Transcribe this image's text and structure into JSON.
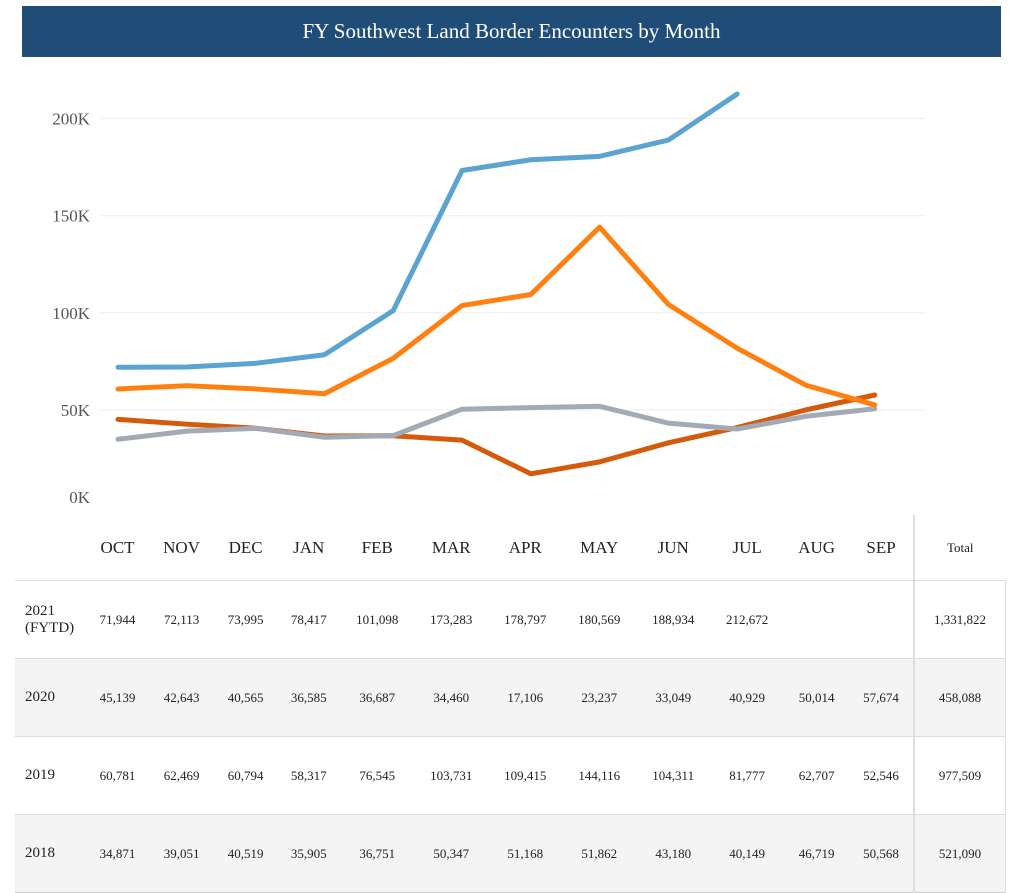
{
  "chart_data": {
    "type": "line",
    "title": "FY Southwest Land Border Encounters by Month",
    "categories": [
      "OCT",
      "NOV",
      "DEC",
      "JAN",
      "FEB",
      "MAR",
      "APR",
      "MAY",
      "JUN",
      "JUL",
      "AUG",
      "SEP"
    ],
    "yticks": [
      {
        "v": 0,
        "label": "0K"
      },
      {
        "v": 50000,
        "label": "50K"
      },
      {
        "v": 100000,
        "label": "100K"
      },
      {
        "v": 150000,
        "label": "150K"
      },
      {
        "v": 200000,
        "label": "200K"
      }
    ],
    "ylim": [
      0,
      220000
    ],
    "grid": true,
    "total_label": "Total",
    "series": [
      {
        "name": "2021 (FYTD)",
        "color": "#5ba3d0",
        "values": [
          71944,
          72113,
          73995,
          78417,
          101098,
          173283,
          178797,
          180569,
          188934,
          212672,
          null,
          null
        ],
        "display": [
          "71,944",
          "72,113",
          "73,995",
          "78,417",
          "101,098",
          "173,283",
          "178,797",
          "180,569",
          "188,934",
          "212,672",
          "",
          ""
        ],
        "total": "1,331,822"
      },
      {
        "name": "2020",
        "color": "#d45a0c",
        "values": [
          45139,
          42643,
          40565,
          36585,
          36687,
          34460,
          17106,
          23237,
          33049,
          40929,
          50014,
          57674
        ],
        "display": [
          "45,139",
          "42,643",
          "40,565",
          "36,585",
          "36,687",
          "34,460",
          "17,106",
          "23,237",
          "33,049",
          "40,929",
          "50,014",
          "57,674"
        ],
        "total": "458,088"
      },
      {
        "name": "2019",
        "color": "#ff7f10",
        "values": [
          60781,
          62469,
          60794,
          58317,
          76545,
          103731,
          109415,
          144116,
          104311,
          81777,
          62707,
          52546
        ],
        "display": [
          "60,781",
          "62,469",
          "60,794",
          "58,317",
          "76,545",
          "103,731",
          "109,415",
          "144,116",
          "104,311",
          "81,777",
          "62,707",
          "52,546"
        ],
        "total": "977,509"
      },
      {
        "name": "2018",
        "color": "#a3aab5",
        "values": [
          34871,
          39051,
          40519,
          35905,
          36751,
          50347,
          51168,
          51862,
          43180,
          40149,
          46719,
          50568
        ],
        "display": [
          "34,871",
          "39,051",
          "40,519",
          "35,905",
          "36,751",
          "50,347",
          "51,168",
          "51,862",
          "43,180",
          "40,149",
          "46,719",
          "50,568"
        ],
        "total": "521,090"
      }
    ]
  }
}
